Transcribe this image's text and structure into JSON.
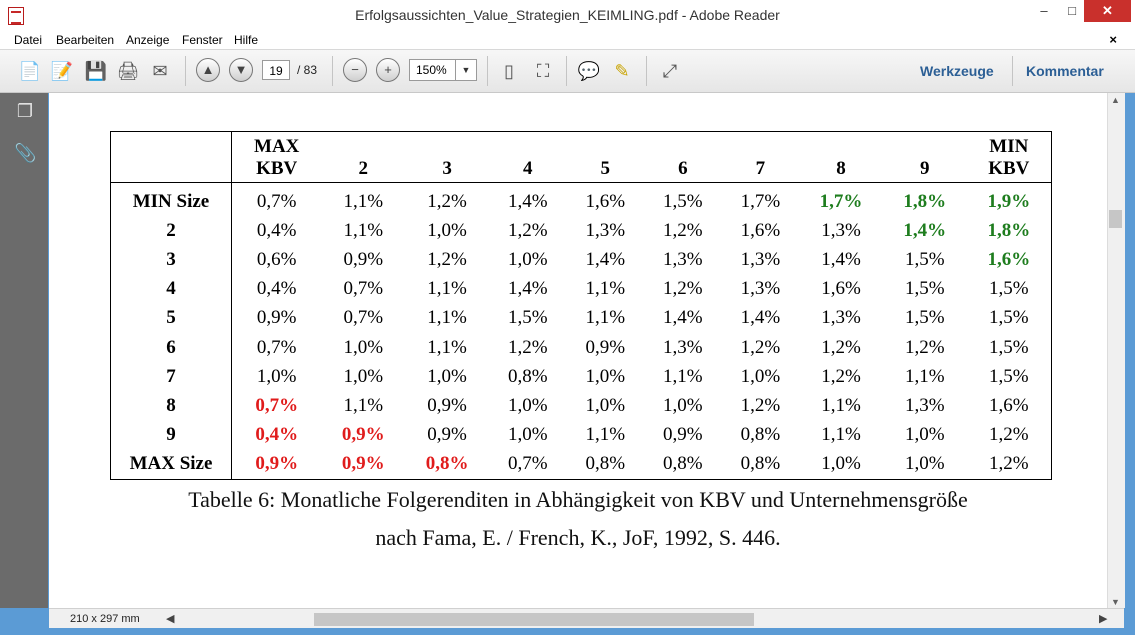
{
  "window": {
    "title": "Erfolgsaussichten_Value_Strategien_KEIMLING.pdf - Adobe Reader",
    "minimize": "–",
    "maximize": "□",
    "close": "✕"
  },
  "menu": {
    "items": [
      "Datei",
      "Bearbeiten",
      "Anzeige",
      "Fenster",
      "Hilfe"
    ],
    "close_doc": "×"
  },
  "toolbar": {
    "page_current": "19",
    "page_total": "/ 83",
    "zoom": "150%",
    "werkzeuge": "Werkzeuge",
    "kommentar": "Kommentar"
  },
  "document": {
    "table": {
      "header": [
        [
          "MAX",
          "KBV"
        ],
        [
          "2"
        ],
        [
          "3"
        ],
        [
          "4"
        ],
        [
          "5"
        ],
        [
          "6"
        ],
        [
          "7"
        ],
        [
          "8"
        ],
        [
          "9"
        ],
        [
          "MIN",
          "KBV"
        ]
      ],
      "rows": [
        {
          "label": "MIN Size",
          "cells": [
            "0,7%",
            "1,1%",
            "1,2%",
            "1,4%",
            "1,6%",
            "1,5%",
            "1,7%",
            "1,7%",
            "1,8%",
            "1,9%"
          ],
          "styles": [
            "",
            "",
            "",
            "",
            "",
            "",
            "",
            "green",
            "green",
            "green"
          ]
        },
        {
          "label": "2",
          "cells": [
            "0,4%",
            "1,1%",
            "1,0%",
            "1,2%",
            "1,3%",
            "1,2%",
            "1,6%",
            "1,3%",
            "1,4%",
            "1,8%"
          ],
          "styles": [
            "",
            "",
            "",
            "",
            "",
            "",
            "",
            "",
            "green",
            "green"
          ]
        },
        {
          "label": "3",
          "cells": [
            "0,6%",
            "0,9%",
            "1,2%",
            "1,0%",
            "1,4%",
            "1,3%",
            "1,3%",
            "1,4%",
            "1,5%",
            "1,6%"
          ],
          "styles": [
            "",
            "",
            "",
            "",
            "",
            "",
            "",
            "",
            "",
            "green"
          ]
        },
        {
          "label": "4",
          "cells": [
            "0,4%",
            "0,7%",
            "1,1%",
            "1,4%",
            "1,1%",
            "1,2%",
            "1,3%",
            "1,6%",
            "1,5%",
            "1,5%"
          ],
          "styles": [
            "",
            "",
            "",
            "",
            "",
            "",
            "",
            "",
            "",
            ""
          ]
        },
        {
          "label": "5",
          "cells": [
            "0,9%",
            "0,7%",
            "1,1%",
            "1,5%",
            "1,1%",
            "1,4%",
            "1,4%",
            "1,3%",
            "1,5%",
            "1,5%"
          ],
          "styles": [
            "",
            "",
            "",
            "",
            "",
            "",
            "",
            "",
            "",
            ""
          ]
        },
        {
          "label": "6",
          "cells": [
            "0,7%",
            "1,0%",
            "1,1%",
            "1,2%",
            "0,9%",
            "1,3%",
            "1,2%",
            "1,2%",
            "1,2%",
            "1,5%"
          ],
          "styles": [
            "",
            "",
            "",
            "",
            "",
            "",
            "",
            "",
            "",
            ""
          ]
        },
        {
          "label": "7",
          "cells": [
            "1,0%",
            "1,0%",
            "1,0%",
            "0,8%",
            "1,0%",
            "1,1%",
            "1,0%",
            "1,2%",
            "1,1%",
            "1,5%"
          ],
          "styles": [
            "",
            "",
            "",
            "",
            "",
            "",
            "",
            "",
            "",
            ""
          ]
        },
        {
          "label": "8",
          "cells": [
            "0,7%",
            "1,1%",
            "0,9%",
            "1,0%",
            "1,0%",
            "1,0%",
            "1,2%",
            "1,1%",
            "1,3%",
            "1,6%"
          ],
          "styles": [
            "red",
            "",
            "",
            "",
            "",
            "",
            "",
            "",
            "",
            ""
          ]
        },
        {
          "label": "9",
          "cells": [
            "0,4%",
            "0,9%",
            "0,9%",
            "1,0%",
            "1,1%",
            "0,9%",
            "0,8%",
            "1,1%",
            "1,0%",
            "1,2%"
          ],
          "styles": [
            "red",
            "red",
            "",
            "",
            "",
            "",
            "",
            "",
            "",
            ""
          ]
        },
        {
          "label": "MAX Size",
          "cells": [
            "0,9%",
            "0,9%",
            "0,8%",
            "0,7%",
            "0,8%",
            "0,8%",
            "0,8%",
            "1,0%",
            "1,0%",
            "1,2%"
          ],
          "styles": [
            "red",
            "red",
            "red",
            "",
            "",
            "",
            "",
            "",
            "",
            ""
          ]
        }
      ],
      "colors": {
        "green": "#1e7d1e",
        "red": "#e01b1b"
      }
    },
    "caption_line1": "Tabelle 6: Monatliche Folgerenditen in Abhängigkeit von KBV und Unternehmensgröße",
    "caption_line2": "nach Fama, E. / French, K., JoF, 1992, S. 446."
  },
  "status": {
    "page_size": "210 x 297 mm"
  },
  "icons": [
    "pdf-app-icon",
    "create-pdf-icon",
    "edit-pdf-icon",
    "save-icon",
    "print-icon",
    "email-icon",
    "page-up-icon",
    "page-down-icon",
    "zoom-out-icon",
    "zoom-in-icon",
    "fit-page-icon",
    "fit-width-icon",
    "comment-icon",
    "highlight-icon",
    "expand-icon",
    "pages-panel-icon",
    "attachments-icon"
  ]
}
